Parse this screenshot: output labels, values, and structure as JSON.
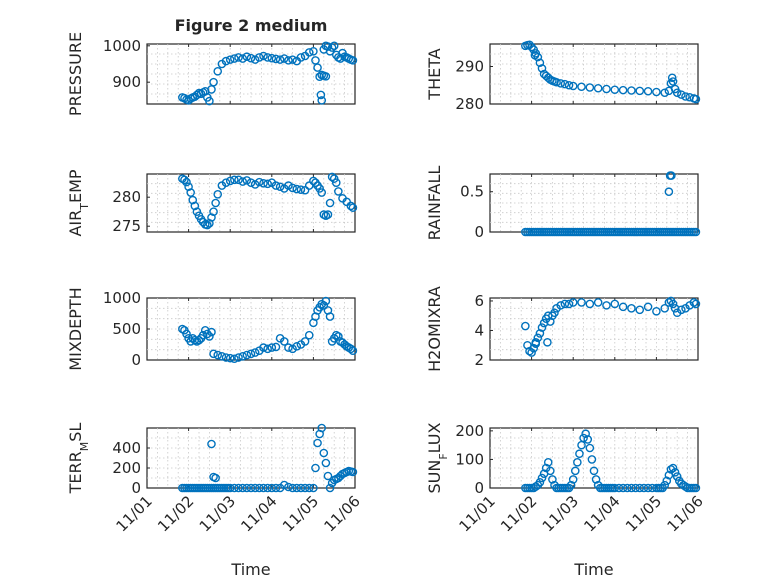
{
  "figure": {
    "title": "Figure 2 medium",
    "background": "#ffffff",
    "marker_color": "#0072bd",
    "marker": "circle",
    "xlabel": "Time",
    "xticklabels": [
      "11/01",
      "11/02",
      "11/03",
      "11/04",
      "11/05",
      "11/06"
    ]
  },
  "chart_data": [
    {
      "type": "scatter",
      "name": "pressure",
      "grid": true,
      "ylabel": "PRESSURE",
      "ylim": [
        840,
        1005
      ],
      "yticks": [
        900,
        1000
      ],
      "xlim": [
        0,
        5
      ],
      "x": [
        0.85,
        0.9,
        0.95,
        1.0,
        1.05,
        1.1,
        1.15,
        1.2,
        1.25,
        1.3,
        1.35,
        1.4,
        1.45,
        1.5,
        1.55,
        1.6,
        1.7,
        1.8,
        1.9,
        2.0,
        2.1,
        2.2,
        2.3,
        2.4,
        2.5,
        2.6,
        2.7,
        2.8,
        2.9,
        3.0,
        3.1,
        3.2,
        3.3,
        3.4,
        3.5,
        3.6,
        3.7,
        3.8,
        3.9,
        4.0,
        4.05,
        4.1,
        4.15,
        4.2,
        4.25,
        4.3,
        4.35,
        4.4,
        4.45,
        4.5,
        4.55,
        4.6,
        4.65,
        4.7,
        4.75,
        4.8,
        4.85,
        4.9,
        4.95,
        4.18,
        4.2,
        4.25,
        4.3
      ],
      "y": [
        858,
        856,
        852,
        850,
        855,
        858,
        860,
        865,
        870,
        868,
        872,
        875,
        858,
        848,
        880,
        900,
        930,
        950,
        958,
        962,
        965,
        968,
        965,
        970,
        966,
        962,
        968,
        972,
        968,
        966,
        964,
        962,
        965,
        960,
        962,
        958,
        968,
        972,
        982,
        985,
        960,
        940,
        915,
        920,
        990,
        1000,
        998,
        985,
        995,
        1000,
        975,
        968,
        965,
        980,
        970,
        968,
        965,
        962,
        960,
        865,
        850,
        918,
        916
      ]
    },
    {
      "type": "scatter",
      "name": "theta",
      "grid": true,
      "ylabel": "THETA",
      "ylim": [
        280,
        296
      ],
      "yticks": [
        280,
        290
      ],
      "xlim": [
        0,
        5
      ],
      "x": [
        0.85,
        0.9,
        0.95,
        1.0,
        1.05,
        1.1,
        1.15,
        1.2,
        1.25,
        1.3,
        1.35,
        1.4,
        1.45,
        1.5,
        1.55,
        1.6,
        1.7,
        1.8,
        1.9,
        2.0,
        2.2,
        2.4,
        2.6,
        2.8,
        3.0,
        3.2,
        3.4,
        3.6,
        3.8,
        4.0,
        4.2,
        4.3,
        4.35,
        4.4,
        4.45,
        4.5,
        4.6,
        4.7,
        4.8,
        4.9,
        4.95,
        1.08,
        4.38
      ],
      "y": [
        295.5,
        295.7,
        295.8,
        295.2,
        294.5,
        293.5,
        292.5,
        291.0,
        289.5,
        288.0,
        287.5,
        287.0,
        286.5,
        286.2,
        286.0,
        285.8,
        285.5,
        285.3,
        285.0,
        284.8,
        284.6,
        284.4,
        284.2,
        284.0,
        283.8,
        283.7,
        283.6,
        283.5,
        283.4,
        283.2,
        283.0,
        283.5,
        285.5,
        286.0,
        284.0,
        283.0,
        282.5,
        282.0,
        281.8,
        281.5,
        281.3,
        293.0,
        287.0
      ]
    },
    {
      "type": "scatter",
      "name": "air_temp",
      "grid": true,
      "ylabel": "AIR_TEMP",
      "ylim": [
        274,
        284
      ],
      "yticks": [
        275,
        280
      ],
      "xlim": [
        0,
        5
      ],
      "x": [
        0.85,
        0.9,
        0.95,
        1.0,
        1.05,
        1.1,
        1.15,
        1.2,
        1.25,
        1.3,
        1.35,
        1.4,
        1.45,
        1.5,
        1.55,
        1.6,
        1.65,
        1.7,
        1.8,
        1.9,
        2.0,
        2.1,
        2.2,
        2.3,
        2.4,
        2.5,
        2.6,
        2.7,
        2.8,
        2.9,
        3.0,
        3.1,
        3.2,
        3.3,
        3.4,
        3.5,
        3.6,
        3.7,
        3.8,
        3.9,
        4.0,
        4.05,
        4.1,
        4.15,
        4.2,
        4.25,
        4.3,
        4.35,
        4.4,
        4.45,
        4.5,
        4.55,
        4.6,
        4.7,
        4.8,
        4.9,
        4.95
      ],
      "y": [
        283.2,
        283.0,
        282.6,
        281.8,
        280.8,
        279.5,
        278.5,
        277.5,
        276.8,
        276.2,
        275.7,
        275.3,
        275.2,
        275.5,
        276.5,
        277.5,
        279.0,
        280.5,
        282.0,
        282.5,
        282.8,
        283.0,
        283.0,
        282.7,
        282.9,
        282.5,
        282.2,
        282.6,
        282.4,
        282.3,
        282.5,
        282.0,
        281.8,
        281.5,
        282.0,
        281.6,
        281.4,
        281.3,
        281.2,
        282.0,
        282.8,
        282.5,
        282.0,
        281.5,
        280.8,
        277.0,
        276.8,
        277.0,
        279.0,
        283.5,
        283.2,
        282.5,
        281.0,
        279.8,
        279.2,
        278.5,
        278.2
      ]
    },
    {
      "type": "scatter",
      "name": "rainfall",
      "grid": true,
      "ylabel": "RAINFALL",
      "ylim": [
        0,
        0.72
      ],
      "yticks": [
        0,
        0.5
      ],
      "xlim": [
        0,
        5
      ],
      "x": [
        0.85,
        0.9,
        0.95,
        1.0,
        1.05,
        1.1,
        1.15,
        1.2,
        1.25,
        1.3,
        1.35,
        1.4,
        1.45,
        1.5,
        1.55,
        1.6,
        1.65,
        1.7,
        1.75,
        1.8,
        1.85,
        1.9,
        1.95,
        2.0,
        2.05,
        2.1,
        2.15,
        2.2,
        2.25,
        2.3,
        2.35,
        2.4,
        2.45,
        2.5,
        2.55,
        2.6,
        2.65,
        2.7,
        2.75,
        2.8,
        2.85,
        2.9,
        2.95,
        3.0,
        3.05,
        3.1,
        3.15,
        3.2,
        3.25,
        3.3,
        3.35,
        3.4,
        3.45,
        3.5,
        3.55,
        3.6,
        3.65,
        3.7,
        3.75,
        3.8,
        3.85,
        3.9,
        3.95,
        4.0,
        4.05,
        4.1,
        4.15,
        4.2,
        4.25,
        4.3,
        4.35,
        4.4,
        4.45,
        4.5,
        4.55,
        4.6,
        4.65,
        4.7,
        4.75,
        4.8,
        4.85,
        4.9,
        4.95,
        4.3,
        4.33,
        4.36
      ],
      "y": [
        0,
        0,
        0,
        0,
        0,
        0,
        0,
        0,
        0,
        0,
        0,
        0,
        0,
        0,
        0,
        0,
        0,
        0,
        0,
        0,
        0,
        0,
        0,
        0,
        0,
        0,
        0,
        0,
        0,
        0,
        0,
        0,
        0,
        0,
        0,
        0,
        0,
        0,
        0,
        0,
        0,
        0,
        0,
        0,
        0,
        0,
        0,
        0,
        0,
        0,
        0,
        0,
        0,
        0,
        0,
        0,
        0,
        0,
        0,
        0,
        0,
        0,
        0,
        0,
        0,
        0,
        0,
        0,
        0,
        0,
        0,
        0,
        0,
        0,
        0,
        0,
        0,
        0,
        0,
        0,
        0,
        0,
        0,
        0.5,
        0.7,
        0.7
      ]
    },
    {
      "type": "scatter",
      "name": "mixdepth",
      "grid": true,
      "ylabel": "MIXDEPTH",
      "ylim": [
        0,
        1000
      ],
      "yticks": [
        0,
        500,
        1000
      ],
      "xlim": [
        0,
        5
      ],
      "x": [
        0.85,
        0.9,
        0.95,
        1.0,
        1.05,
        1.1,
        1.15,
        1.2,
        1.25,
        1.3,
        1.35,
        1.4,
        1.45,
        1.5,
        1.55,
        1.6,
        1.7,
        1.8,
        1.9,
        2.0,
        2.1,
        2.2,
        2.3,
        2.4,
        2.5,
        2.6,
        2.7,
        2.8,
        2.9,
        3.0,
        3.1,
        3.2,
        3.3,
        3.4,
        3.5,
        3.6,
        3.7,
        3.8,
        3.9,
        4.0,
        4.05,
        4.1,
        4.15,
        4.2,
        4.25,
        4.3,
        4.35,
        4.4,
        4.45,
        4.5,
        4.55,
        4.6,
        4.65,
        4.7,
        4.75,
        4.8,
        4.85,
        4.9,
        4.95
      ],
      "y": [
        500,
        480,
        420,
        350,
        300,
        350,
        320,
        300,
        320,
        350,
        400,
        480,
        420,
        380,
        450,
        100,
        80,
        60,
        40,
        30,
        20,
        40,
        60,
        80,
        100,
        120,
        150,
        200,
        180,
        200,
        210,
        350,
        300,
        200,
        180,
        220,
        250,
        300,
        400,
        600,
        700,
        800,
        850,
        900,
        880,
        950,
        800,
        700,
        300,
        350,
        400,
        380,
        300,
        280,
        250,
        220,
        200,
        180,
        150
      ]
    },
    {
      "type": "scatter",
      "name": "h2omixra",
      "grid": true,
      "ylabel": "H2OMIXRA",
      "ylim": [
        2,
        6.2
      ],
      "yticks": [
        2,
        4,
        6
      ],
      "xlim": [
        0,
        5
      ],
      "x": [
        0.85,
        0.9,
        0.95,
        1.0,
        1.05,
        1.1,
        1.15,
        1.2,
        1.25,
        1.3,
        1.35,
        1.4,
        1.45,
        1.5,
        1.55,
        1.6,
        1.7,
        1.8,
        1.9,
        2.0,
        2.2,
        2.4,
        2.6,
        2.8,
        3.0,
        3.2,
        3.4,
        3.6,
        3.8,
        4.0,
        4.2,
        4.3,
        4.35,
        4.4,
        4.45,
        4.5,
        4.6,
        4.7,
        4.8,
        4.9,
        4.95,
        1.1,
        1.38
      ],
      "y": [
        4.3,
        3.0,
        2.6,
        2.5,
        2.8,
        3.2,
        3.5,
        3.8,
        4.2,
        4.5,
        4.8,
        5.0,
        4.6,
        5.0,
        5.2,
        5.5,
        5.7,
        5.8,
        5.8,
        5.9,
        5.9,
        5.8,
        5.9,
        5.7,
        5.8,
        5.6,
        5.5,
        5.4,
        5.6,
        5.3,
        5.5,
        5.9,
        6.0,
        5.8,
        5.5,
        5.2,
        5.4,
        5.5,
        5.7,
        5.9,
        5.8,
        3.1,
        3.2
      ]
    },
    {
      "type": "scatter",
      "name": "terr_msl",
      "grid": true,
      "ylabel": "TERR_MSL",
      "ylim": [
        0,
        600
      ],
      "yticks": [
        0,
        200,
        400
      ],
      "xlim": [
        0,
        5
      ],
      "x": [
        0.85,
        0.9,
        0.95,
        1.0,
        1.05,
        1.1,
        1.15,
        1.2,
        1.25,
        1.3,
        1.35,
        1.4,
        1.45,
        1.5,
        1.55,
        1.6,
        1.65,
        1.7,
        1.75,
        1.8,
        1.85,
        1.9,
        1.95,
        2.0,
        2.1,
        2.2,
        2.3,
        2.4,
        2.5,
        2.6,
        2.7,
        2.8,
        2.9,
        3.0,
        3.1,
        3.2,
        3.3,
        3.4,
        3.5,
        3.6,
        3.7,
        3.8,
        3.9,
        4.0,
        4.05,
        4.1,
        4.15,
        4.2,
        4.25,
        4.3,
        4.35,
        4.4,
        4.45,
        4.5,
        4.55,
        4.6,
        4.65,
        4.7,
        4.75,
        4.8,
        4.85,
        4.9,
        4.95,
        1.55,
        1.6,
        1.65
      ],
      "y": [
        0,
        0,
        0,
        0,
        0,
        0,
        0,
        0,
        0,
        0,
        0,
        0,
        0,
        0,
        0,
        0,
        0,
        0,
        0,
        0,
        0,
        0,
        0,
        0,
        0,
        0,
        0,
        0,
        0,
        0,
        0,
        0,
        0,
        0,
        0,
        0,
        30,
        10,
        0,
        0,
        0,
        0,
        0,
        0,
        200,
        450,
        540,
        600,
        350,
        250,
        120,
        0,
        50,
        80,
        90,
        100,
        120,
        140,
        150,
        160,
        170,
        165,
        160,
        440,
        110,
        100
      ]
    },
    {
      "type": "scatter",
      "name": "sun_flux",
      "grid": true,
      "ylabel": "SUN_FLUX",
      "ylim": [
        0,
        210
      ],
      "yticks": [
        0,
        100,
        200
      ],
      "xlim": [
        0,
        5
      ],
      "x": [
        0.85,
        0.9,
        0.95,
        1.0,
        1.05,
        1.1,
        1.15,
        1.2,
        1.25,
        1.3,
        1.35,
        1.4,
        1.45,
        1.5,
        1.55,
        1.6,
        1.65,
        1.7,
        1.75,
        1.8,
        1.85,
        1.9,
        1.95,
        2.0,
        2.05,
        2.1,
        2.15,
        2.2,
        2.25,
        2.3,
        2.35,
        2.4,
        2.45,
        2.5,
        2.55,
        2.6,
        2.65,
        2.7,
        2.75,
        2.8,
        2.85,
        2.9,
        2.95,
        3.0,
        3.1,
        3.2,
        3.3,
        3.4,
        3.5,
        3.6,
        3.7,
        3.8,
        3.9,
        4.0,
        4.05,
        4.1,
        4.15,
        4.2,
        4.25,
        4.3,
        4.35,
        4.4,
        4.45,
        4.5,
        4.55,
        4.6,
        4.65,
        4.7,
        4.75,
        4.8,
        4.85,
        4.9,
        4.95
      ],
      "y": [
        0,
        0,
        0,
        0,
        0,
        5,
        10,
        20,
        35,
        50,
        70,
        90,
        60,
        30,
        10,
        0,
        0,
        0,
        0,
        0,
        0,
        0,
        10,
        30,
        60,
        90,
        120,
        150,
        175,
        190,
        170,
        140,
        100,
        60,
        30,
        10,
        0,
        0,
        0,
        0,
        0,
        0,
        0,
        0,
        0,
        0,
        0,
        0,
        0,
        0,
        0,
        0,
        0,
        0,
        0,
        0,
        0,
        10,
        25,
        45,
        65,
        70,
        55,
        40,
        25,
        15,
        10,
        5,
        0,
        0,
        0,
        0,
        0
      ]
    }
  ]
}
